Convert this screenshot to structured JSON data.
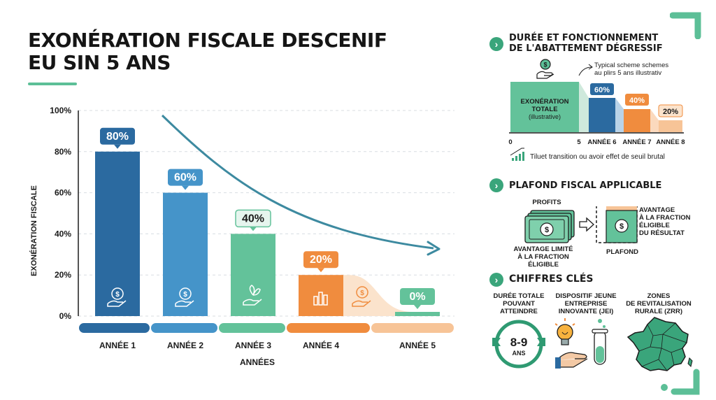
{
  "header": {
    "title_line1": "EXONÉRATION FISCALE DESCENIF",
    "title_line2": "EU SIN 5 ANS"
  },
  "colors": {
    "accent": "#5cbf97",
    "bar1": "#2b6aa0",
    "bar2": "#4594c9",
    "bar3": "#63c29a",
    "bar4": "#f08c3e",
    "bar5": "#63c29a",
    "band5": "#f7c497",
    "arrow": "#3d8aa0"
  },
  "chart_data": {
    "type": "bar",
    "categories": [
      "ANNÉE 1",
      "ANNÉE 2",
      "ANNÉE 3",
      "ANNÉE 4",
      "ANNÉE 5"
    ],
    "values": [
      80,
      60,
      40,
      20,
      0
    ],
    "data_labels": [
      "80%",
      "60%",
      "40%",
      "20%",
      "0%"
    ],
    "bar_icons": [
      "hand-coin-icon",
      "coin-hand-icon",
      "plant-hand-icon",
      "bar-chart-icon",
      "hand-coin-icon"
    ],
    "ylim": [
      0,
      100
    ],
    "y_ticks": [
      "0%",
      "20%",
      "40%",
      "60%",
      "80%",
      "100%"
    ],
    "y_tick_values": [
      0,
      20,
      40,
      60,
      80,
      100
    ],
    "xlabel": "ANNÉES",
    "ylabel": "EXONÉRATION FISCALE",
    "grid": true,
    "trend": "downward-curved-arrow"
  },
  "section1": {
    "heading_line1": "DURÉE ET FONCTIONNEMENT",
    "heading_line2": "DE L'ABATTEMENT DÉGRESSIF",
    "note_line1": "Typical scheme schemes",
    "note_line2": "au plirs 5 ans illustrativ",
    "block_label_line1": "EXONÉRATION",
    "block_label_line2": "TOTALE",
    "block_label_line3": "(illustrative)",
    "step_labels": [
      "60%",
      "40%",
      "20%"
    ],
    "axis_labels": [
      "0",
      "5",
      "ANNÉE 6",
      "ANNÉE 7",
      "ANNÉE 8"
    ],
    "footer_note": "Tiluet transition ou avoir effet de seuil brutal"
  },
  "section2": {
    "heading": "PLAFOND FISCAL APPLICABLE",
    "profits_label": "PROFITS",
    "left_caption_line1": "AVANTAGE LIMITÉ",
    "left_caption_line2": "À LA FRACTION ÉLIGIBLE",
    "right_label_line1": "AVANTAGE",
    "right_label_line2": "À LA FRACTION",
    "right_label_line3": "ÉLIGIBLE",
    "right_label_line4": "DU RÉSULTAT",
    "plafond_label": "PLAFOND"
  },
  "section3": {
    "heading": "CHIFFRES CLÉS",
    "col1_line1": "DURÉE TOTALE",
    "col1_line2": "POUVANT",
    "col1_line3": "ATTEINDRE",
    "badge_value": "8-9",
    "badge_unit": "ANS",
    "col2_line1": "DISPOSITIF JEUNE",
    "col2_line2": "ENTREPRISE",
    "col2_line3": "INNOVANTE (JEI)",
    "col3_line1": "ZONES",
    "col3_line2": "DE REVITALISATION",
    "col3_line3": "RURALE (ZRR)"
  }
}
